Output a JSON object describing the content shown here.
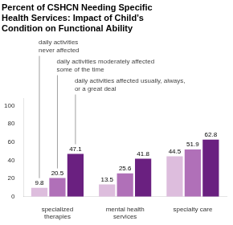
{
  "chart_data": {
    "type": "bar",
    "title": "Percent of CSHCN Needing Specific\nHealth Services: Impact of Child’s\nCondition on Functional Ability",
    "categories": [
      "specialized\ntherapies",
      "mental health\nservices",
      "specialty care"
    ],
    "series": [
      {
        "name": "daily activities\nnever affected",
        "color": "#ddbddd",
        "values": [
          9.8,
          13.5,
          44.5
        ]
      },
      {
        "name": "daily activities moderately affected\nsome of the time",
        "color": "#b070b8",
        "values": [
          20.5,
          25.6,
          51.9
        ]
      },
      {
        "name": "daily activities affected usually, always,\nor a great deal",
        "color": "#6a2080",
        "values": [
          47.1,
          41.8,
          62.8
        ]
      }
    ],
    "ylim": [
      0,
      108
    ],
    "yticks": [
      0,
      20,
      40,
      60,
      80,
      100
    ],
    "grid": false,
    "data_labels": true
  }
}
